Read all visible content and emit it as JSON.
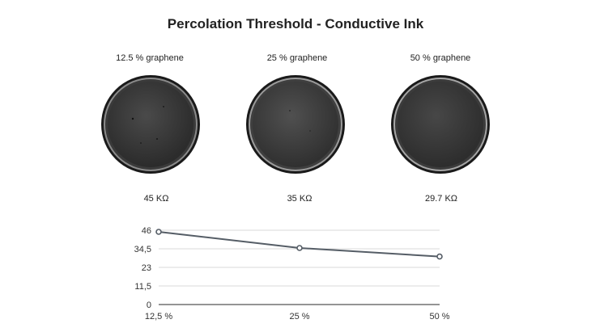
{
  "page": {
    "title": "Percolation Threshold - Conductive Ink"
  },
  "samples": [
    {
      "label": "12.5 % graphene",
      "resistance": "45 KΩ"
    },
    {
      "label": "25 % graphene",
      "resistance": "35 KΩ"
    },
    {
      "label": "50 % graphene",
      "resistance": "29.7 KΩ"
    }
  ],
  "chart_data": {
    "type": "line",
    "categories": [
      "12,5 %",
      "25 %",
      "50 %"
    ],
    "series": [
      {
        "values": [
          45,
          35,
          29.7
        ],
        "color": "#555d66"
      }
    ],
    "yticks": [
      0,
      11.5,
      23,
      34.5,
      46
    ],
    "ytick_labels": [
      "0",
      "11,5",
      "23",
      "34,5",
      "46"
    ],
    "ylim": [
      0,
      46
    ],
    "grid": true,
    "xlabel": "",
    "ylabel": ""
  }
}
